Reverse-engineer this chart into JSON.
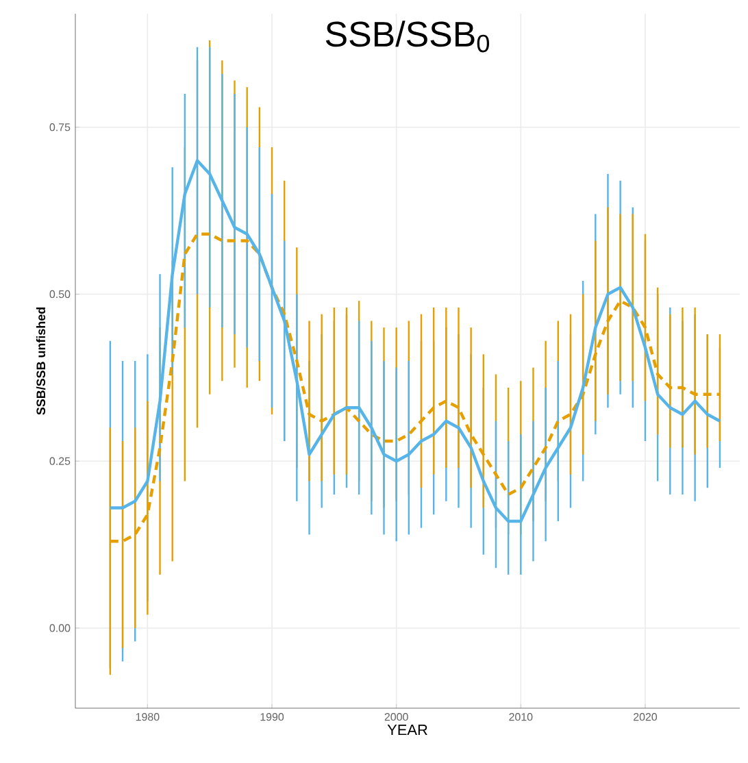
{
  "chart_data": {
    "type": "line",
    "title": "SSB/SSB$_{0}$",
    "xlabel": "YEAR",
    "ylabel": "SSB/SSB unfished",
    "x": [
      1977,
      1978,
      1979,
      1980,
      1981,
      1982,
      1983,
      1984,
      1985,
      1986,
      1987,
      1988,
      1989,
      1990,
      1991,
      1992,
      1993,
      1994,
      1995,
      1996,
      1997,
      1998,
      1999,
      2000,
      2001,
      2002,
      2003,
      2004,
      2005,
      2006,
      2007,
      2008,
      2009,
      2010,
      2011,
      2012,
      2013,
      2014,
      2015,
      2016,
      2017,
      2018,
      2019,
      2020,
      2021,
      2022,
      2023,
      2024,
      2025,
      2026
    ],
    "series": [
      {
        "color": "#e69f00",
        "line_style": "dashed",
        "values": [
          0.13,
          0.13,
          0.14,
          0.17,
          0.27,
          0.4,
          0.56,
          0.59,
          0.59,
          0.58,
          0.58,
          0.58,
          0.56,
          0.51,
          0.47,
          0.4,
          0.32,
          0.31,
          0.32,
          0.33,
          0.31,
          0.29,
          0.28,
          0.28,
          0.29,
          0.31,
          0.33,
          0.34,
          0.33,
          0.29,
          0.26,
          0.23,
          0.2,
          0.21,
          0.24,
          0.27,
          0.31,
          0.32,
          0.35,
          0.41,
          0.46,
          0.49,
          0.48,
          0.45,
          0.38,
          0.36,
          0.36,
          0.35,
          0.35,
          0.35
        ],
        "errors": [
          [
            -0.07,
            0.3
          ],
          [
            -0.03,
            0.28
          ],
          [
            0.0,
            0.3
          ],
          [
            0.02,
            0.34
          ],
          [
            0.08,
            0.45
          ],
          [
            0.1,
            0.55
          ],
          [
            0.22,
            0.72
          ],
          [
            0.3,
            0.85
          ],
          [
            0.35,
            0.88
          ],
          [
            0.37,
            0.85
          ],
          [
            0.39,
            0.82
          ],
          [
            0.36,
            0.81
          ],
          [
            0.37,
            0.78
          ],
          [
            0.32,
            0.72
          ],
          [
            0.28,
            0.67
          ],
          [
            0.24,
            0.57
          ],
          [
            0.22,
            0.46
          ],
          [
            0.22,
            0.47
          ],
          [
            0.23,
            0.48
          ],
          [
            0.23,
            0.48
          ],
          [
            0.22,
            0.49
          ],
          [
            0.19,
            0.46
          ],
          [
            0.18,
            0.45
          ],
          [
            0.19,
            0.45
          ],
          [
            0.2,
            0.46
          ],
          [
            0.21,
            0.47
          ],
          [
            0.23,
            0.48
          ],
          [
            0.24,
            0.48
          ],
          [
            0.24,
            0.48
          ],
          [
            0.21,
            0.45
          ],
          [
            0.18,
            0.41
          ],
          [
            0.15,
            0.38
          ],
          [
            0.14,
            0.36
          ],
          [
            0.14,
            0.37
          ],
          [
            0.16,
            0.39
          ],
          [
            0.19,
            0.43
          ],
          [
            0.22,
            0.46
          ],
          [
            0.23,
            0.47
          ],
          [
            0.26,
            0.5
          ],
          [
            0.31,
            0.58
          ],
          [
            0.35,
            0.63
          ],
          [
            0.37,
            0.62
          ],
          [
            0.37,
            0.62
          ],
          [
            0.34,
            0.59
          ],
          [
            0.29,
            0.51
          ],
          [
            0.27,
            0.47
          ],
          [
            0.27,
            0.48
          ],
          [
            0.26,
            0.48
          ],
          [
            0.27,
            0.44
          ],
          [
            0.28,
            0.44
          ]
        ]
      },
      {
        "color": "#56b4e9",
        "line_style": "solid",
        "values": [
          0.18,
          0.18,
          0.19,
          0.22,
          0.34,
          0.53,
          0.65,
          0.7,
          0.68,
          0.64,
          0.6,
          0.59,
          0.56,
          0.51,
          0.46,
          0.37,
          0.26,
          0.29,
          0.32,
          0.33,
          0.33,
          0.3,
          0.26,
          0.25,
          0.26,
          0.28,
          0.29,
          0.31,
          0.3,
          0.27,
          0.22,
          0.18,
          0.16,
          0.16,
          0.2,
          0.24,
          0.27,
          0.3,
          0.36,
          0.45,
          0.5,
          0.51,
          0.48,
          0.42,
          0.35,
          0.33,
          0.32,
          0.34,
          0.32,
          0.31
        ],
        "errors": [
          [
            -0.06,
            0.43
          ],
          [
            -0.05,
            0.4
          ],
          [
            -0.02,
            0.4
          ],
          [
            0.04,
            0.41
          ],
          [
            0.22,
            0.53
          ],
          [
            0.38,
            0.69
          ],
          [
            0.45,
            0.8
          ],
          [
            0.5,
            0.87
          ],
          [
            0.48,
            0.87
          ],
          [
            0.45,
            0.83
          ],
          [
            0.44,
            0.8
          ],
          [
            0.42,
            0.75
          ],
          [
            0.4,
            0.72
          ],
          [
            0.33,
            0.65
          ],
          [
            0.28,
            0.58
          ],
          [
            0.19,
            0.5
          ],
          [
            0.14,
            0.4
          ],
          [
            0.18,
            0.44
          ],
          [
            0.2,
            0.46
          ],
          [
            0.21,
            0.47
          ],
          [
            0.2,
            0.46
          ],
          [
            0.17,
            0.43
          ],
          [
            0.14,
            0.4
          ],
          [
            0.13,
            0.39
          ],
          [
            0.14,
            0.4
          ],
          [
            0.15,
            0.43
          ],
          [
            0.17,
            0.43
          ],
          [
            0.19,
            0.45
          ],
          [
            0.18,
            0.44
          ],
          [
            0.15,
            0.41
          ],
          [
            0.11,
            0.36
          ],
          [
            0.09,
            0.31
          ],
          [
            0.08,
            0.28
          ],
          [
            0.08,
            0.29
          ],
          [
            0.1,
            0.31
          ],
          [
            0.13,
            0.36
          ],
          [
            0.16,
            0.4
          ],
          [
            0.18,
            0.44
          ],
          [
            0.22,
            0.52
          ],
          [
            0.29,
            0.62
          ],
          [
            0.33,
            0.68
          ],
          [
            0.35,
            0.67
          ],
          [
            0.33,
            0.63
          ],
          [
            0.28,
            0.58
          ],
          [
            0.22,
            0.5
          ],
          [
            0.2,
            0.48
          ],
          [
            0.2,
            0.46
          ],
          [
            0.19,
            0.47
          ],
          [
            0.21,
            0.44
          ],
          [
            0.24,
            0.42
          ]
        ]
      }
    ],
    "xlim": [
      1974.2,
      2027.6
    ],
    "ylim": [
      -0.12,
      0.92
    ],
    "xticks": [
      1980,
      1990,
      2000,
      2010,
      2020
    ],
    "yticks": [
      {
        "value": 0,
        "label": "0.00"
      },
      {
        "value": 0.25,
        "label": "0.25"
      },
      {
        "value": 0.5,
        "label": "0.50"
      },
      {
        "value": 0.75,
        "label": "0.75"
      }
    ],
    "grid": true,
    "marker": "none"
  }
}
